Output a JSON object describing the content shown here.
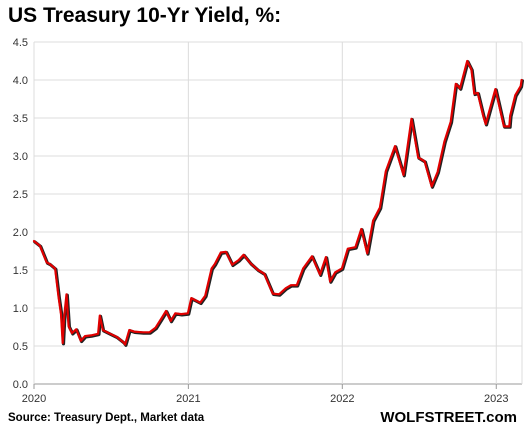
{
  "chart_data": {
    "type": "line",
    "title": "US Treasury 10-Yr Yield, %:",
    "xlabel": "",
    "ylabel": "",
    "xlim": [
      "2020-01-01",
      "2023-03-03"
    ],
    "ylim": [
      0,
      4.5
    ],
    "y_ticks": [
      "0.0",
      "0.5",
      "1.0",
      "1.5",
      "2.0",
      "2.5",
      "3.0",
      "3.5",
      "4.0",
      "4.5"
    ],
    "x_ticks": [
      {
        "label": "2020",
        "date": "2020-01-01"
      },
      {
        "label": "2021",
        "date": "2021-01-01"
      },
      {
        "label": "2022",
        "date": "2022-01-01"
      },
      {
        "label": "2023",
        "date": "2023-01-01"
      }
    ],
    "grid": true,
    "line_color": "#e00000",
    "shadow_color": "#222222",
    "series": [
      {
        "name": "",
        "points": [
          [
            "2020-01-01",
            1.88
          ],
          [
            "2020-01-15",
            1.82
          ],
          [
            "2020-01-31",
            1.6
          ],
          [
            "2020-02-07",
            1.58
          ],
          [
            "2020-02-20",
            1.52
          ],
          [
            "2020-02-28",
            1.15
          ],
          [
            "2020-03-05",
            0.92
          ],
          [
            "2020-03-09",
            0.54
          ],
          [
            "2020-03-12",
            0.85
          ],
          [
            "2020-03-18",
            1.18
          ],
          [
            "2020-03-23",
            0.76
          ],
          [
            "2020-03-31",
            0.67
          ],
          [
            "2020-04-10",
            0.72
          ],
          [
            "2020-04-21",
            0.57
          ],
          [
            "2020-05-01",
            0.63
          ],
          [
            "2020-05-15",
            0.64
          ],
          [
            "2020-06-01",
            0.66
          ],
          [
            "2020-06-05",
            0.9
          ],
          [
            "2020-06-12",
            0.71
          ],
          [
            "2020-06-30",
            0.66
          ],
          [
            "2020-07-15",
            0.62
          ],
          [
            "2020-07-31",
            0.55
          ],
          [
            "2020-08-04",
            0.52
          ],
          [
            "2020-08-14",
            0.71
          ],
          [
            "2020-08-25",
            0.69
          ],
          [
            "2020-09-15",
            0.68
          ],
          [
            "2020-10-01",
            0.68
          ],
          [
            "2020-10-15",
            0.74
          ],
          [
            "2020-10-30",
            0.87
          ],
          [
            "2020-11-09",
            0.96
          ],
          [
            "2020-11-20",
            0.83
          ],
          [
            "2020-12-01",
            0.93
          ],
          [
            "2020-12-15",
            0.92
          ],
          [
            "2020-12-31",
            0.93
          ],
          [
            "2021-01-08",
            1.13
          ],
          [
            "2021-01-29",
            1.07
          ],
          [
            "2021-02-10",
            1.16
          ],
          [
            "2021-02-25",
            1.52
          ],
          [
            "2021-03-05",
            1.58
          ],
          [
            "2021-03-19",
            1.73
          ],
          [
            "2021-03-31",
            1.74
          ],
          [
            "2021-04-15",
            1.57
          ],
          [
            "2021-04-30",
            1.63
          ],
          [
            "2021-05-12",
            1.7
          ],
          [
            "2021-05-28",
            1.59
          ],
          [
            "2021-06-15",
            1.5
          ],
          [
            "2021-06-30",
            1.45
          ],
          [
            "2021-07-20",
            1.19
          ],
          [
            "2021-08-04",
            1.18
          ],
          [
            "2021-08-20",
            1.26
          ],
          [
            "2021-09-01",
            1.3
          ],
          [
            "2021-09-15",
            1.3
          ],
          [
            "2021-09-30",
            1.52
          ],
          [
            "2021-10-21",
            1.68
          ],
          [
            "2021-11-09",
            1.44
          ],
          [
            "2021-11-23",
            1.67
          ],
          [
            "2021-12-03",
            1.35
          ],
          [
            "2021-12-15",
            1.47
          ],
          [
            "2021-12-31",
            1.52
          ],
          [
            "2022-01-14",
            1.78
          ],
          [
            "2022-02-01",
            1.8
          ],
          [
            "2022-02-15",
            2.04
          ],
          [
            "2022-03-01",
            1.72
          ],
          [
            "2022-03-15",
            2.15
          ],
          [
            "2022-03-31",
            2.32
          ],
          [
            "2022-04-14",
            2.8
          ],
          [
            "2022-05-06",
            3.13
          ],
          [
            "2022-05-26",
            2.75
          ],
          [
            "2022-06-14",
            3.49
          ],
          [
            "2022-06-30",
            2.98
          ],
          [
            "2022-07-15",
            2.93
          ],
          [
            "2022-08-01",
            2.6
          ],
          [
            "2022-08-15",
            2.79
          ],
          [
            "2022-08-31",
            3.19
          ],
          [
            "2022-09-15",
            3.45
          ],
          [
            "2022-09-27",
            3.95
          ],
          [
            "2022-10-07",
            3.89
          ],
          [
            "2022-10-24",
            4.25
          ],
          [
            "2022-11-03",
            4.14
          ],
          [
            "2022-11-10",
            3.82
          ],
          [
            "2022-11-18",
            3.83
          ],
          [
            "2022-12-01",
            3.53
          ],
          [
            "2022-12-07",
            3.42
          ],
          [
            "2022-12-20",
            3.68
          ],
          [
            "2022-12-30",
            3.88
          ],
          [
            "2023-01-10",
            3.61
          ],
          [
            "2023-01-19",
            3.39
          ],
          [
            "2023-02-01",
            3.39
          ],
          [
            "2023-02-03",
            3.53
          ],
          [
            "2023-02-15",
            3.8
          ],
          [
            "2023-02-28",
            3.92
          ],
          [
            "2023-03-02",
            4.0
          ]
        ]
      }
    ]
  },
  "footer": {
    "source": "Source: Treasury Dept., Market data",
    "brand": "WOLFSTREET.com"
  }
}
